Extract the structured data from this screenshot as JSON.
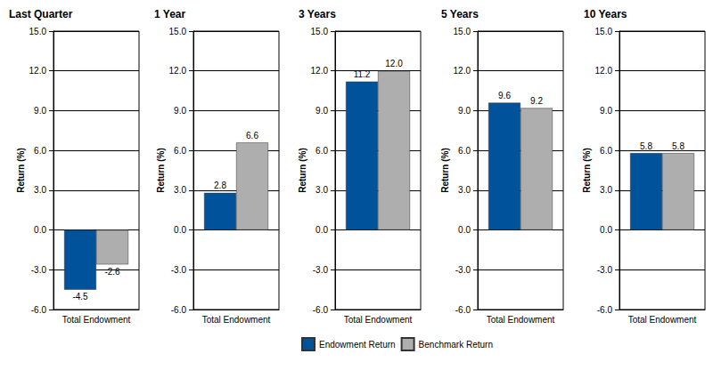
{
  "chart_data": [
    {
      "type": "bar",
      "title": "Last Quarter",
      "ylabel": "Return (%)",
      "categories": [
        "Total Endowment"
      ],
      "series": [
        {
          "name": "Endowment Return",
          "color": "#00539b",
          "values": [
            -4.5
          ],
          "value_labels": [
            "-4.5"
          ]
        },
        {
          "name": "Benchmark Return",
          "color": "#aeaeae",
          "values": [
            -2.6
          ],
          "value_labels": [
            "-2.6"
          ]
        }
      ],
      "ylim": [
        -6,
        15
      ],
      "yticks": [
        {
          "value": -6,
          "label": "-6.0"
        },
        {
          "value": -3,
          "label": "-3.0"
        },
        {
          "value": 0,
          "label": "0.0"
        },
        {
          "value": 3,
          "label": "3.0"
        },
        {
          "value": 6,
          "label": "6.0"
        },
        {
          "value": 9,
          "label": "9.0"
        },
        {
          "value": 12,
          "label": "12.0"
        },
        {
          "value": 15,
          "label": "15.0"
        }
      ],
      "grid": true,
      "data_labels": true,
      "legend": "bottom"
    },
    {
      "type": "bar",
      "title": "1 Year",
      "ylabel": "Return (%)",
      "categories": [
        "Total Endowment"
      ],
      "series": [
        {
          "name": "Endowment Return",
          "color": "#00539b",
          "values": [
            2.8
          ],
          "value_labels": [
            "2.8"
          ]
        },
        {
          "name": "Benchmark Return",
          "color": "#aeaeae",
          "values": [
            6.6
          ],
          "value_labels": [
            "6.6"
          ]
        }
      ],
      "ylim": [
        -6,
        15
      ],
      "yticks": [
        {
          "value": -6,
          "label": "-6.0"
        },
        {
          "value": -3,
          "label": "-3.0"
        },
        {
          "value": 0,
          "label": "0.0"
        },
        {
          "value": 3,
          "label": "3.0"
        },
        {
          "value": 6,
          "label": "6.0"
        },
        {
          "value": 9,
          "label": "9.0"
        },
        {
          "value": 12,
          "label": "12.0"
        },
        {
          "value": 15,
          "label": "15.0"
        }
      ],
      "grid": true,
      "data_labels": true,
      "legend": "bottom"
    },
    {
      "type": "bar",
      "title": "3 Years",
      "ylabel": "Return (%)",
      "categories": [
        "Total Endowment"
      ],
      "series": [
        {
          "name": "Endowment Return",
          "color": "#00539b",
          "values": [
            11.2
          ],
          "value_labels": [
            "11.2"
          ]
        },
        {
          "name": "Benchmark Return",
          "color": "#aeaeae",
          "values": [
            12.0
          ],
          "value_labels": [
            "12.0"
          ]
        }
      ],
      "ylim": [
        -6,
        15
      ],
      "yticks": [
        {
          "value": -6,
          "label": "-6.0"
        },
        {
          "value": -3,
          "label": "-3.0"
        },
        {
          "value": 0,
          "label": "0.0"
        },
        {
          "value": 3,
          "label": "3.0"
        },
        {
          "value": 6,
          "label": "6.0"
        },
        {
          "value": 9,
          "label": "9.0"
        },
        {
          "value": 12,
          "label": "12.0"
        },
        {
          "value": 15,
          "label": "15.0"
        }
      ],
      "grid": true,
      "data_labels": true,
      "legend": "bottom"
    },
    {
      "type": "bar",
      "title": "5 Years",
      "ylabel": "Return (%)",
      "categories": [
        "Total Endowment"
      ],
      "series": [
        {
          "name": "Endowment Return",
          "color": "#00539b",
          "values": [
            9.6
          ],
          "value_labels": [
            "9.6"
          ]
        },
        {
          "name": "Benchmark Return",
          "color": "#aeaeae",
          "values": [
            9.2
          ],
          "value_labels": [
            "9.2"
          ]
        }
      ],
      "ylim": [
        -6,
        15
      ],
      "yticks": [
        {
          "value": -6,
          "label": "-6.0"
        },
        {
          "value": -3,
          "label": "-3.0"
        },
        {
          "value": 0,
          "label": "0.0"
        },
        {
          "value": 3,
          "label": "3.0"
        },
        {
          "value": 6,
          "label": "6.0"
        },
        {
          "value": 9,
          "label": "9.0"
        },
        {
          "value": 12,
          "label": "12.0"
        },
        {
          "value": 15,
          "label": "15.0"
        }
      ],
      "grid": true,
      "data_labels": true,
      "legend": "bottom"
    },
    {
      "type": "bar",
      "title": "10 Years",
      "ylabel": "Return (%)",
      "categories": [
        "Total Endowment"
      ],
      "series": [
        {
          "name": "Endowment Return",
          "color": "#00539b",
          "values": [
            5.8
          ],
          "value_labels": [
            "5.8"
          ]
        },
        {
          "name": "Benchmark Return",
          "color": "#aeaeae",
          "values": [
            5.8
          ],
          "value_labels": [
            "5.8"
          ]
        }
      ],
      "ylim": [
        -6,
        15
      ],
      "yticks": [
        {
          "value": -6,
          "label": "-6.0"
        },
        {
          "value": -3,
          "label": "-3.0"
        },
        {
          "value": 0,
          "label": "0.0"
        },
        {
          "value": 3,
          "label": "3.0"
        },
        {
          "value": 6,
          "label": "6.0"
        },
        {
          "value": 9,
          "label": "9.0"
        },
        {
          "value": 12,
          "label": "12.0"
        },
        {
          "value": 15,
          "label": "15.0"
        }
      ],
      "grid": true,
      "data_labels": true,
      "legend": "bottom"
    }
  ]
}
